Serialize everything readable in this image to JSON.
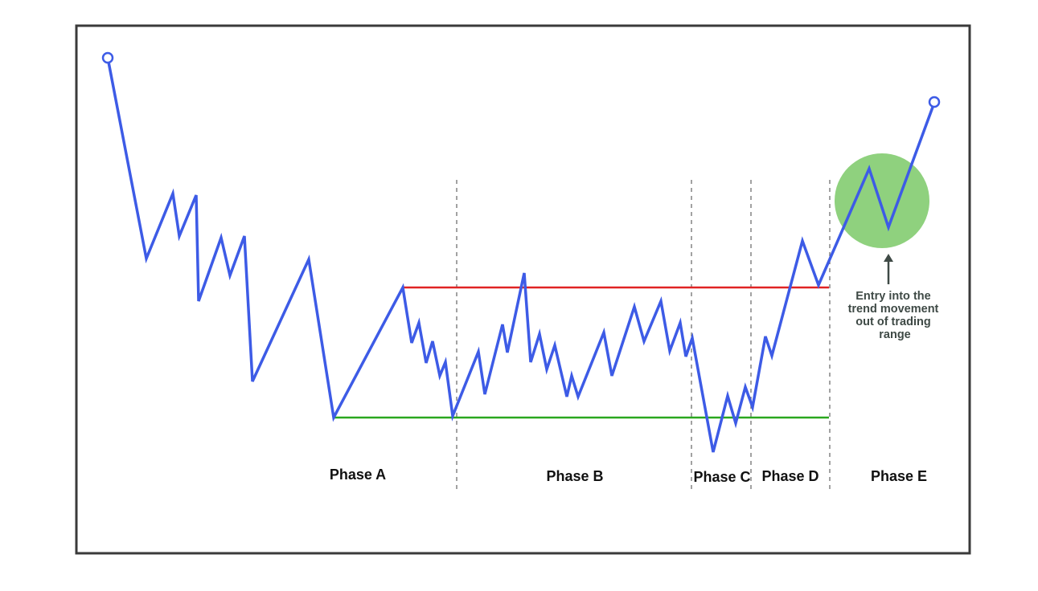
{
  "phases": [
    {
      "label": "Phase A"
    },
    {
      "label": "Phase B"
    },
    {
      "label": "Phase C"
    },
    {
      "label": "Phase D"
    },
    {
      "label": "Phase E"
    }
  ],
  "annotation": {
    "lines": [
      "Entry into the",
      "trend movement",
      "out of trading",
      "range"
    ]
  },
  "colors": {
    "frame": "#3a3a3a",
    "price_line": "#3d5be6",
    "resistance": "#e02424",
    "support": "#2aa71f",
    "highlight": "#8fd17e",
    "arrow": "#3f4a46",
    "divider": "#7a7a7a"
  },
  "icons": {
    "start_marker": "hollow-circle",
    "end_marker": "hollow-circle",
    "arrow": "arrow-up-icon"
  }
}
